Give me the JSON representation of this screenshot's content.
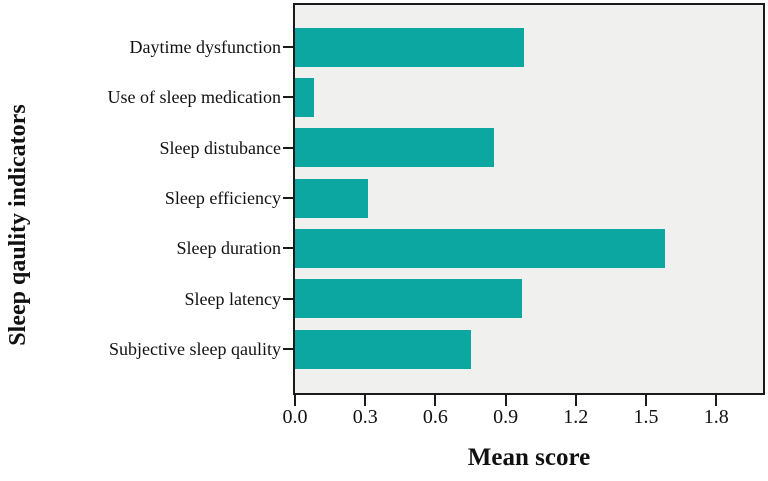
{
  "chart_data": {
    "type": "bar",
    "orientation": "horizontal",
    "title": "",
    "xlabel": "Mean score",
    "ylabel": "Sleep qaulity indicators",
    "categories": [
      "Daytime dysfunction",
      "Use of sleep medication",
      "Sleep distubance",
      "Sleep efficiency",
      "Sleep duration",
      "Sleep latency",
      "Subjective sleep qaulity"
    ],
    "values": [
      0.98,
      0.08,
      0.85,
      0.31,
      1.58,
      0.97,
      0.75
    ],
    "x_ticks": [
      "0.0",
      "0.3",
      "0.6",
      "0.9",
      "1.2",
      "1.5",
      "1.8"
    ],
    "x_tick_values": [
      0.0,
      0.3,
      0.6,
      0.9,
      1.2,
      1.5,
      1.8
    ],
    "xlim": [
      0.0,
      2.0
    ],
    "grid": false,
    "legend": null,
    "bar_color": "#0ba7a0",
    "plot_bg": "#f0f0ee",
    "axis_color": "#1a1a1a"
  }
}
